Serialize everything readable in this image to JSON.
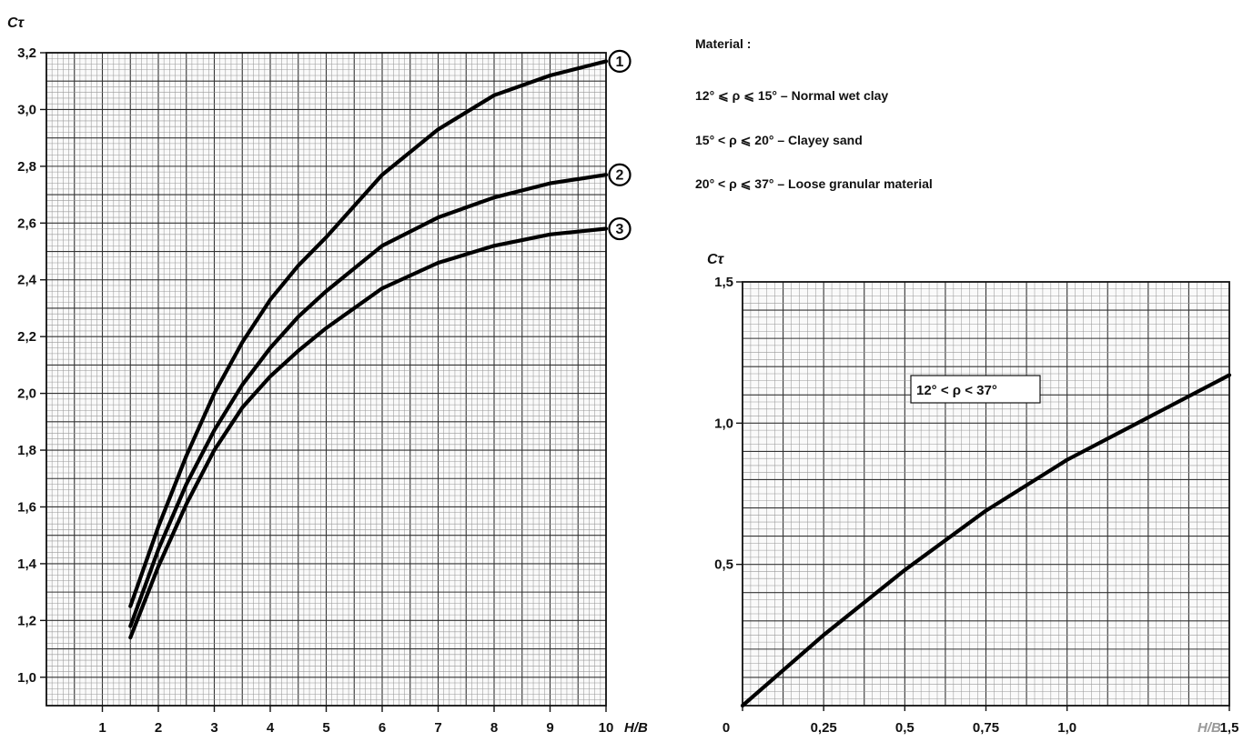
{
  "legend": {
    "heading": "Material :",
    "entries": [
      {
        "key": "1",
        "range": "12° ⩽ ρ ⩽ 15°",
        "description": "Normal wet clay"
      },
      {
        "key": "2",
        "range": "15° < ρ ⩽ 20°",
        "description": "Clayey sand"
      },
      {
        "key": "3",
        "range": "20° < ρ ⩽ 37°",
        "description": "Loose granular material"
      }
    ]
  },
  "chart_data": [
    {
      "type": "line",
      "ylabel": "Cτ",
      "xlabel": "H/B",
      "xlim": [
        0,
        10
      ],
      "ylim": [
        0.9,
        3.2
      ],
      "x_ticks": [
        "1",
        "2",
        "3",
        "4",
        "5",
        "6",
        "7",
        "8",
        "9",
        "10"
      ],
      "y_ticks": [
        "1,0",
        "1,2",
        "1,4",
        "1,6",
        "1,8",
        "2,0",
        "2,2",
        "2,4",
        "2,6",
        "2,8",
        "3,0",
        "3,2"
      ],
      "grid": true,
      "series": [
        {
          "name": "1",
          "x": [
            1.5,
            2,
            2.5,
            3,
            3.5,
            4,
            4.5,
            5,
            6,
            7,
            8,
            9,
            10
          ],
          "y": [
            1.25,
            1.53,
            1.78,
            2.0,
            2.18,
            2.33,
            2.45,
            2.55,
            2.77,
            2.93,
            3.05,
            3.12,
            3.17
          ]
        },
        {
          "name": "2",
          "x": [
            1.5,
            2,
            2.5,
            3,
            3.5,
            4,
            4.5,
            5,
            6,
            7,
            8,
            9,
            10
          ],
          "y": [
            1.18,
            1.45,
            1.68,
            1.87,
            2.03,
            2.16,
            2.27,
            2.36,
            2.52,
            2.62,
            2.69,
            2.74,
            2.77
          ]
        },
        {
          "name": "3",
          "x": [
            1.5,
            2,
            2.5,
            3,
            3.5,
            4,
            4.5,
            5,
            6,
            7,
            8,
            9,
            10
          ],
          "y": [
            1.14,
            1.39,
            1.61,
            1.8,
            1.95,
            2.06,
            2.15,
            2.23,
            2.37,
            2.46,
            2.52,
            2.56,
            2.58
          ]
        }
      ]
    },
    {
      "type": "line",
      "ylabel": "Cτ",
      "xlabel": "H/B",
      "xlim": [
        0,
        1.5
      ],
      "ylim": [
        0,
        1.5
      ],
      "x_ticks": [
        "0",
        "0,25",
        "0,5",
        "0,75",
        "1,0",
        "1,5"
      ],
      "y_ticks": [
        "0,5",
        "1,0",
        "1,5"
      ],
      "grid": true,
      "annotation": "12° < ρ < 37°",
      "series": [
        {
          "x": [
            0,
            0.25,
            0.5,
            0.75,
            1.0,
            1.25,
            1.5
          ],
          "y": [
            0,
            0.25,
            0.48,
            0.69,
            0.87,
            1.02,
            1.17
          ]
        }
      ]
    }
  ]
}
